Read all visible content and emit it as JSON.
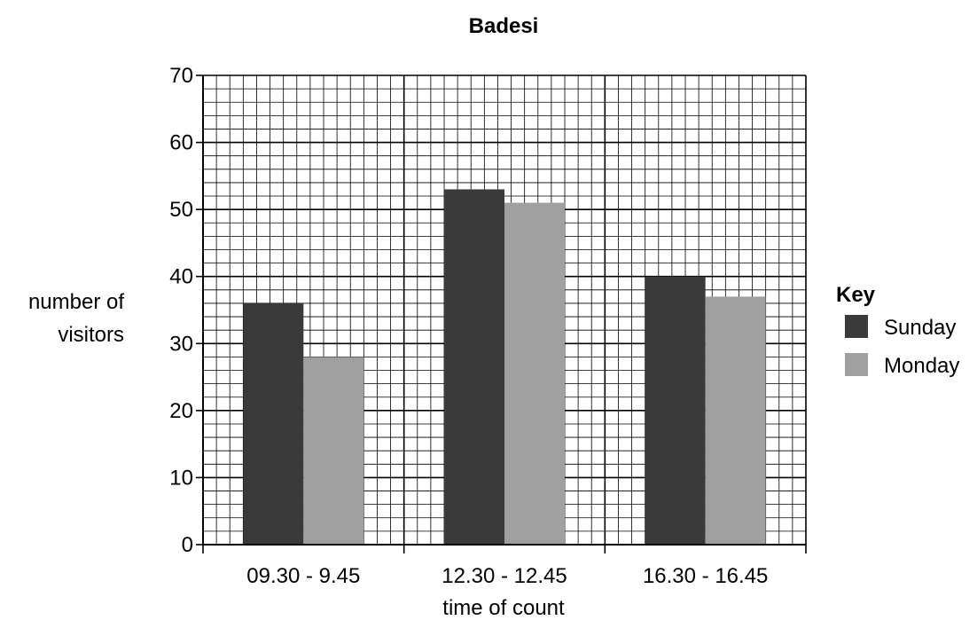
{
  "chart_data": {
    "type": "bar",
    "title": "Badesi",
    "xlabel": "time of count",
    "ylabel_lines": [
      "number of",
      "visitors"
    ],
    "categories": [
      "09.30 - 9.45",
      "12.30 - 12.45",
      "16.30 - 16.45"
    ],
    "series": [
      {
        "name": "Sunday",
        "values": [
          36,
          53,
          40
        ],
        "color": "#3a3a3a"
      },
      {
        "name": "Monday",
        "values": [
          28,
          51,
          37
        ],
        "color": "#a0a0a0"
      }
    ],
    "ylim": [
      0,
      70
    ],
    "y_ticks": [
      "0",
      "10",
      "20",
      "30",
      "40",
      "50",
      "60",
      "70"
    ],
    "grid": true,
    "legend": {
      "title": "Key",
      "position": "right"
    }
  }
}
